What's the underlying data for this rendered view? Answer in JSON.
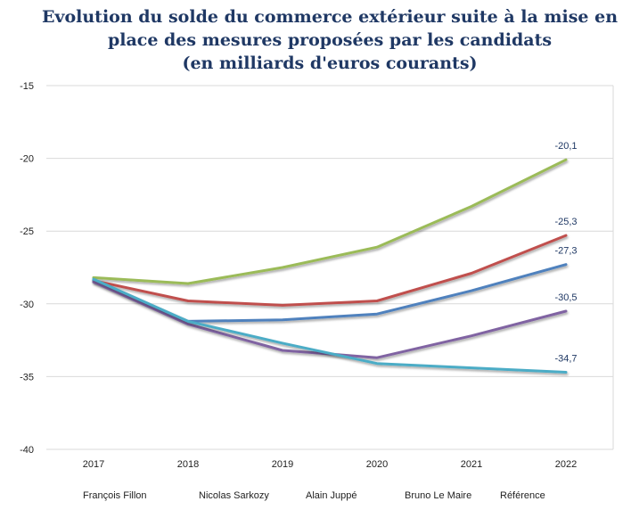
{
  "chart_data": {
    "type": "line",
    "title_lines": [
      "Evolution du solde du commerce extérieur suite à la mise en",
      "place des mesures proposées par les candidats",
      "(en milliards d'euros courants)"
    ],
    "x": [
      "2017",
      "2018",
      "2019",
      "2020",
      "2021",
      "2022"
    ],
    "ylim": [
      -40,
      -15
    ],
    "yticks": [
      -15,
      -20,
      -25,
      -30,
      -35,
      -40
    ],
    "grid": true,
    "legend_position": "bottom",
    "series": [
      {
        "name": "François Fillon",
        "color": "#9bbb59",
        "values": [
          -28.2,
          -28.6,
          -27.5,
          -26.1,
          -23.3,
          -20.1
        ],
        "end_label": "-20,1"
      },
      {
        "name": "Nicolas Sarkozy",
        "color": "#c0504d",
        "values": [
          -28.4,
          -29.8,
          -30.1,
          -29.8,
          -27.9,
          -25.3
        ],
        "end_label": "-25,3"
      },
      {
        "name": "Alain Juppé",
        "color": "#4f81bd",
        "values": [
          -28.4,
          -31.2,
          -31.1,
          -30.7,
          -29.1,
          -27.3
        ],
        "end_label": "-27,3"
      },
      {
        "name": "Bruno Le Maire",
        "color": "#8064a2",
        "values": [
          -28.5,
          -31.4,
          -33.2,
          -33.7,
          -32.2,
          -30.5
        ],
        "end_label": "-30,5"
      },
      {
        "name": "Référence",
        "color": "#4bacc6",
        "values": [
          -28.3,
          -31.2,
          -32.7,
          -34.1,
          -34.4,
          -34.7
        ],
        "end_label": "-34,7"
      }
    ]
  }
}
